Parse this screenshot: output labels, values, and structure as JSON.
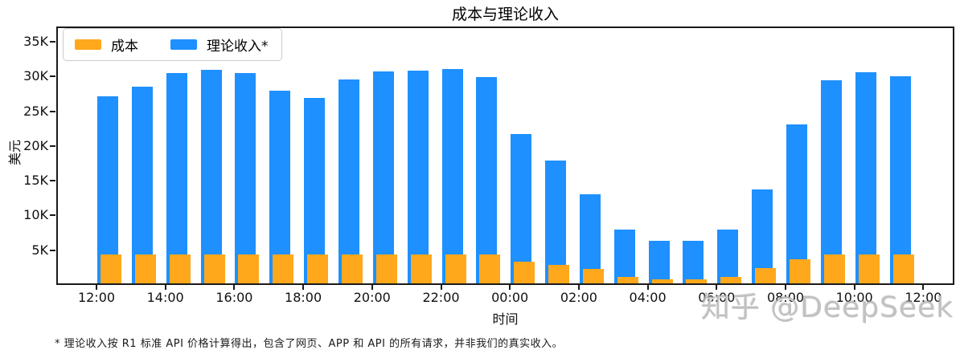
{
  "figure": {
    "title": "成本与理论收入",
    "footnote": "* 理论收入按 R1 标准 API 价格计算得出，包含了网页、APP 和 API 的所有请求，并非我们的真实收入。",
    "watermark": "知乎 @DeepSeek"
  },
  "colors": {
    "cost": "#FFA81C",
    "revenue": "#1E90FF",
    "spine": "#1a1a1a",
    "watermark": "#c2c2c2"
  },
  "chart_data": {
    "type": "bar",
    "title": "成本与理论收入",
    "xlabel": "时间",
    "ylabel": "美元",
    "values_unit": "K (thousand USD)",
    "grid": false,
    "legend_position": "upper left",
    "ylim": [
      0,
      37.2
    ],
    "y_tick_values": [
      5,
      10,
      15,
      20,
      25,
      30,
      35
    ],
    "y_tick_labels": [
      "5K",
      "10K",
      "15K",
      "20K",
      "25K",
      "30K",
      "35K"
    ],
    "x_tick_labels": [
      "12:00",
      "14:00",
      "16:00",
      "18:00",
      "20:00",
      "22:00",
      "00:00",
      "02:00",
      "04:00",
      "06:00",
      "08:00",
      "10:00",
      "12:00"
    ],
    "categories": [
      "12:00",
      "13:00",
      "14:00",
      "15:00",
      "16:00",
      "17:00",
      "18:00",
      "19:00",
      "20:00",
      "21:00",
      "22:00",
      "23:00",
      "00:00",
      "01:00",
      "02:00",
      "03:00",
      "04:00",
      "05:00",
      "06:00",
      "07:00",
      "08:00",
      "09:00",
      "10:00",
      "11:00"
    ],
    "series": [
      {
        "name": "成本",
        "color": "#FFA81C",
        "values": [
          4.4,
          4.4,
          4.4,
          4.4,
          4.4,
          4.4,
          4.4,
          4.4,
          4.4,
          4.4,
          4.4,
          4.4,
          3.3,
          2.9,
          2.3,
          1.2,
          0.8,
          0.8,
          1.2,
          2.4,
          3.7,
          4.4,
          4.4,
          4.4
        ]
      },
      {
        "name": "理论收入*",
        "color": "#1E90FF",
        "values": [
          27.1,
          28.5,
          30.5,
          31.0,
          30.5,
          28.0,
          26.9,
          29.6,
          30.7,
          30.9,
          31.1,
          29.9,
          21.7,
          17.9,
          13.1,
          8.0,
          6.4,
          6.3,
          8.0,
          13.7,
          23.1,
          29.5,
          30.6,
          30.0
        ]
      }
    ]
  }
}
